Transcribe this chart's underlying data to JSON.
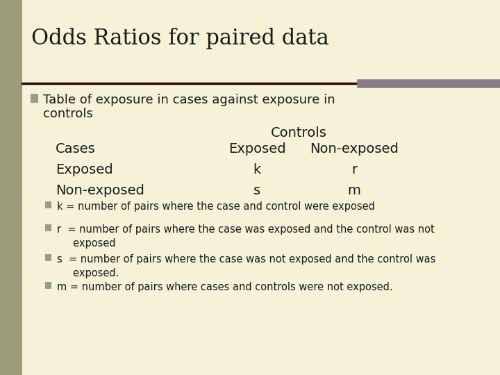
{
  "title": "Odds Ratios for paired data",
  "bg_color": "#f5f2d8",
  "left_bar_color": "#9B9B7A",
  "title_color": "#1a1a1a",
  "bullet_color": "#9B9B8B",
  "dark_bar_color": "#2B0808",
  "mauve_bar_color": "#8B7B8B",
  "bullet_main_line1": "Table of exposure in cases against exposure in",
  "bullet_main_line2": "controls",
  "table_header_col": "Controls",
  "table_col1_header": "Cases",
  "table_col2_header": "Exposed",
  "table_col3_header": "Non-exposed",
  "table_row1_label": "Exposed",
  "table_row1_col1": "k",
  "table_row1_col2": "r",
  "table_row2_label": "Non-exposed",
  "table_row2_col1": "s",
  "table_row2_col2": "m",
  "bullets": [
    "k = number of pairs where the case and control were exposed",
    "r  = number of pairs where the case was exposed and the control was not\n     exposed",
    "s  = number of pairs where the case was not exposed and the control was\n     exposed.",
    "m = number of pairs where cases and controls were not exposed."
  ],
  "title_fontsize": 22,
  "body_fontsize": 13,
  "table_fontsize": 14,
  "bullet_fontsize": 10.5
}
